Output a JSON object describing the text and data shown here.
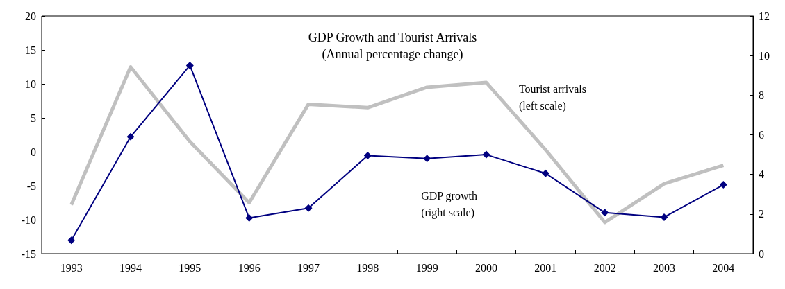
{
  "chart_data": {
    "type": "line",
    "title": "GDP Growth and Tourist Arrivals",
    "subtitle": "(Annual percentage change)",
    "categories": [
      "1993",
      "1994",
      "1995",
      "1996",
      "1997",
      "1998",
      "1999",
      "2000",
      "2001",
      "2002",
      "2003",
      "2004"
    ],
    "series": [
      {
        "name": "Tourist arrivals",
        "color": "#c0c0c0",
        "marker": "none",
        "values": [
          -7.8,
          12.5,
          1.5,
          -7.5,
          7.0,
          6.5,
          9.5,
          10.2,
          0.3,
          -10.4,
          -4.7,
          -2.0
        ]
      },
      {
        "name": "GDP growth",
        "color": "#000080",
        "marker": "diamond",
        "axis": "y2",
        "values": [
          0.67,
          5.9,
          9.5,
          1.8,
          2.3,
          4.95,
          4.8,
          5.0,
          4.05,
          2.07,
          1.84,
          3.48
        ]
      }
    ],
    "ylim": [
      -15,
      20
    ],
    "yticks": [
      -15,
      -10,
      -5,
      0,
      5,
      10,
      15,
      20
    ],
    "annotations": [
      "(left scale)",
      "(right scale)"
    ],
    "y2lim": [
      0,
      12
    ],
    "y2ticks": [
      0,
      2,
      4,
      6,
      8,
      10,
      12
    ]
  }
}
